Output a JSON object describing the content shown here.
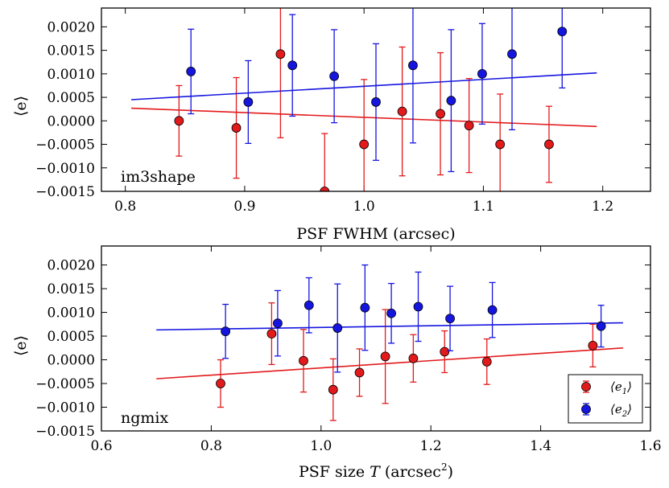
{
  "chart_data": [
    {
      "type": "scatter",
      "panel_label": "im3shape",
      "xlabel": "PSF FWHM (arcsec)",
      "ylabel": "⟨e⟩",
      "xlim": [
        0.78,
        1.24
      ],
      "ylim": [
        -0.0015,
        0.0024
      ],
      "xticks": [
        0.8,
        0.9,
        1.0,
        1.1,
        1.2
      ],
      "xtick_labels": [
        "0.8",
        "0.9",
        "1.0",
        "1.1",
        "1.2"
      ],
      "yticks": [
        -0.0015,
        -0.001,
        -0.0005,
        0.0,
        0.0005,
        0.001,
        0.0015,
        0.002
      ],
      "ytick_labels": [
        "−0.0015",
        "−0.0010",
        "−0.0005",
        "0.0000",
        "0.0005",
        "0.0010",
        "0.0015",
        "0.0020"
      ],
      "series": [
        {
          "name": "e1",
          "color": "#e31a1c",
          "points": [
            {
              "x": 0.845,
              "y": 0.0,
              "err": 0.00075
            },
            {
              "x": 0.893,
              "y": -0.00015,
              "err": 0.00107
            },
            {
              "x": 0.93,
              "y": 0.00142,
              "err": 0.00178
            },
            {
              "x": 0.967,
              "y": -0.0015,
              "err": 0.00123
            },
            {
              "x": 1.0,
              "y": -0.0005,
              "err": 0.00138
            },
            {
              "x": 1.032,
              "y": 0.0002,
              "err": 0.00137
            },
            {
              "x": 1.064,
              "y": 0.00015,
              "err": 0.0013
            },
            {
              "x": 1.088,
              "y": -0.0001,
              "err": 0.001
            },
            {
              "x": 1.114,
              "y": -0.0005,
              "err": 0.00107
            },
            {
              "x": 1.155,
              "y": -0.0005,
              "err": 0.00081
            }
          ],
          "fit": {
            "x": [
              0.805,
              1.195
            ],
            "y": [
              0.00027,
              -0.00012
            ]
          }
        },
        {
          "name": "e2",
          "color": "#1515e0",
          "points": [
            {
              "x": 0.855,
              "y": 0.00105,
              "err": 0.0009
            },
            {
              "x": 0.903,
              "y": 0.0004,
              "err": 0.00088
            },
            {
              "x": 0.94,
              "y": 0.00118,
              "err": 0.00108
            },
            {
              "x": 0.975,
              "y": 0.00095,
              "err": 0.00099
            },
            {
              "x": 1.01,
              "y": 0.0004,
              "err": 0.00124
            },
            {
              "x": 1.041,
              "y": 0.00118,
              "err": 0.00165
            },
            {
              "x": 1.073,
              "y": 0.00043,
              "err": 0.00151
            },
            {
              "x": 1.099,
              "y": 0.001,
              "err": 0.00107
            },
            {
              "x": 1.124,
              "y": 0.00142,
              "err": 0.00161
            },
            {
              "x": 1.166,
              "y": 0.0019,
              "err": 0.0012
            }
          ],
          "fit": {
            "x": [
              0.805,
              1.195
            ],
            "y": [
              0.00045,
              0.00102
            ]
          }
        }
      ]
    },
    {
      "type": "scatter",
      "panel_label": "ngmix",
      "xlabel_main": "PSF size ",
      "xlabel_var": "T",
      "xlabel_units": " (arcsec",
      "xlabel_sup": "2",
      "xlabel_close": ")",
      "ylabel": "⟨e⟩",
      "xlim": [
        0.6,
        1.6
      ],
      "ylim": [
        -0.0015,
        0.0024
      ],
      "xticks": [
        0.6,
        0.8,
        1.0,
        1.2,
        1.4,
        1.6
      ],
      "xtick_labels": [
        "0.6",
        "0.8",
        "1.0",
        "1.2",
        "1.4",
        "1.6"
      ],
      "yticks": [
        -0.0015,
        -0.001,
        -0.0005,
        0.0,
        0.0005,
        0.001,
        0.0015,
        0.002
      ],
      "ytick_labels": [
        "−0.0015",
        "−0.0010",
        "−0.0005",
        "0.0000",
        "0.0005",
        "0.0010",
        "0.0015",
        "0.0020"
      ],
      "legend": {
        "position": "lower-right",
        "entries": [
          {
            "series": "e1",
            "prefix": "⟨e",
            "sub": "1",
            "suffix": "⟩"
          },
          {
            "series": "e2",
            "prefix": "⟨e",
            "sub": "2",
            "suffix": "⟩"
          }
        ]
      },
      "series": [
        {
          "name": "e1",
          "color": "#e31a1c",
          "points": [
            {
              "x": 0.817,
              "y": -0.0005,
              "err": 0.0005
            },
            {
              "x": 0.91,
              "y": 0.00055,
              "err": 0.00065
            },
            {
              "x": 0.968,
              "y": -2e-05,
              "err": 0.00066
            },
            {
              "x": 1.022,
              "y": -0.00063,
              "err": 0.00065
            },
            {
              "x": 1.07,
              "y": -0.00027,
              "err": 0.0005
            },
            {
              "x": 1.117,
              "y": 7e-05,
              "err": 0.00099
            },
            {
              "x": 1.168,
              "y": 3e-05,
              "err": 0.0005
            },
            {
              "x": 1.225,
              "y": 0.00017,
              "err": 0.00044
            },
            {
              "x": 1.302,
              "y": -4e-05,
              "err": 0.00048
            },
            {
              "x": 1.495,
              "y": 0.0003,
              "err": 0.00045
            }
          ],
          "fit": {
            "x": [
              0.7,
              1.55
            ],
            "y": [
              -0.0004,
              0.00025
            ]
          }
        },
        {
          "name": "e2",
          "color": "#1515e0",
          "points": [
            {
              "x": 0.826,
              "y": 0.0006,
              "err": 0.00057
            },
            {
              "x": 0.921,
              "y": 0.00077,
              "err": 0.00069
            },
            {
              "x": 0.978,
              "y": 0.00115,
              "err": 0.00058
            },
            {
              "x": 1.03,
              "y": 0.00067,
              "err": 0.00093
            },
            {
              "x": 1.08,
              "y": 0.0011,
              "err": 0.0009
            },
            {
              "x": 1.128,
              "y": 0.00098,
              "err": 0.00063
            },
            {
              "x": 1.177,
              "y": 0.00112,
              "err": 0.00073
            },
            {
              "x": 1.235,
              "y": 0.00087,
              "err": 0.00068
            },
            {
              "x": 1.312,
              "y": 0.00105,
              "err": 0.00058
            },
            {
              "x": 1.51,
              "y": 0.00071,
              "err": 0.00044
            }
          ],
          "fit": {
            "x": [
              0.7,
              1.55
            ],
            "y": [
              0.00063,
              0.00078
            ]
          }
        }
      ]
    }
  ]
}
